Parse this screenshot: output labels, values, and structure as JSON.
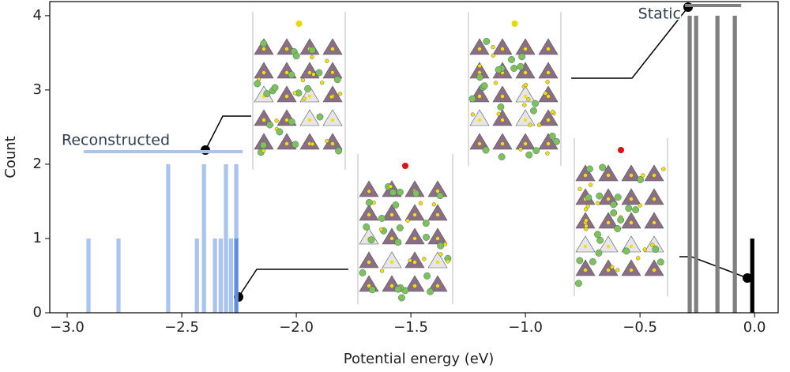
{
  "chart_data": {
    "type": "bar",
    "xlabel": "Potential energy (eV)",
    "ylabel": "Count",
    "xlim": [
      -3.076,
      0.103
    ],
    "ylim": [
      0,
      4.19
    ],
    "xticks": [
      {
        "value": -3,
        "label": "−3.0"
      },
      {
        "value": -2.5,
        "label": "−2.5"
      },
      {
        "value": -2,
        "label": "−2.0"
      },
      {
        "value": -1.5,
        "label": "−1.5"
      },
      {
        "value": -1,
        "label": "−1.0"
      },
      {
        "value": -0.5,
        "label": "−0.5"
      },
      {
        "value": 0,
        "label": "0.0"
      }
    ],
    "yticks": [
      0,
      1,
      2,
      3,
      4
    ],
    "bar_width": 0.025,
    "series": [
      {
        "name": "Reconstructed",
        "color": "#a9c4f0",
        "x": [
          -2.907,
          -2.776,
          -2.559,
          -2.434,
          -2.403,
          -2.355,
          -2.33,
          -2.307,
          -2.285,
          -2.262
        ],
        "values": [
          1,
          1,
          2,
          1,
          2,
          1,
          1,
          2,
          1,
          2
        ]
      },
      {
        "color": "#5f8fdc",
        "x": [
          -2.262
        ],
        "values": [
          1
        ]
      },
      {
        "name": "Static",
        "color": "#808080",
        "x": [
          -0.283,
          -0.255,
          -0.162,
          -0.086
        ],
        "values": [
          4,
          4,
          4,
          4
        ]
      },
      {
        "color": "#000000",
        "x": [
          -0.01
        ],
        "values": [
          1
        ]
      }
    ]
  }
}
